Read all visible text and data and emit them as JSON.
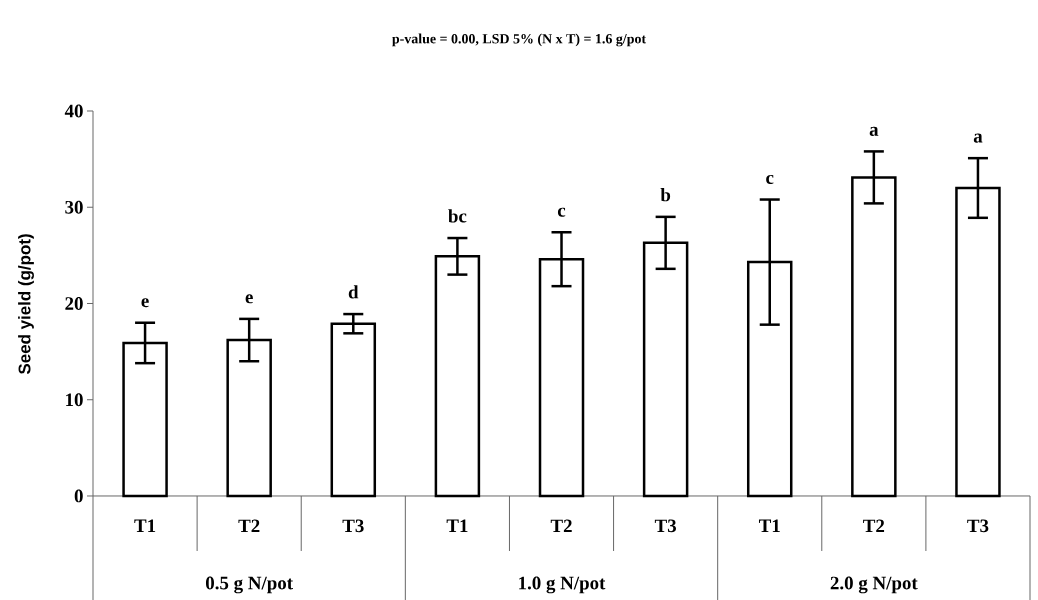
{
  "chart_data": {
    "type": "bar",
    "title": "p-value = 0.00, LSD 5% (N x T) = 1.6 g/pot",
    "ylabel": "Seed yield (g/pot)",
    "categories": [
      "T1",
      "T2",
      "T3",
      "T1",
      "T2",
      "T3",
      "T1",
      "T2",
      "T3"
    ],
    "values": [
      15.9,
      16.2,
      17.9,
      24.9,
      24.6,
      26.3,
      24.3,
      33.1,
      32.0
    ],
    "errors": [
      2.1,
      2.2,
      1.0,
      1.9,
      2.8,
      2.7,
      6.5,
      2.7,
      3.1
    ],
    "color": "#ffffff",
    "ylim": [
      0,
      40
    ],
    "yticks": [
      0,
      10,
      20,
      30,
      40
    ],
    "annotations": [
      "e",
      "e",
      "d",
      "bc",
      "c",
      "b",
      "c",
      "a",
      "a",
      "0.5 g N/pot",
      "1.0  g N/pot",
      "2.0  g N/pot"
    ]
  }
}
